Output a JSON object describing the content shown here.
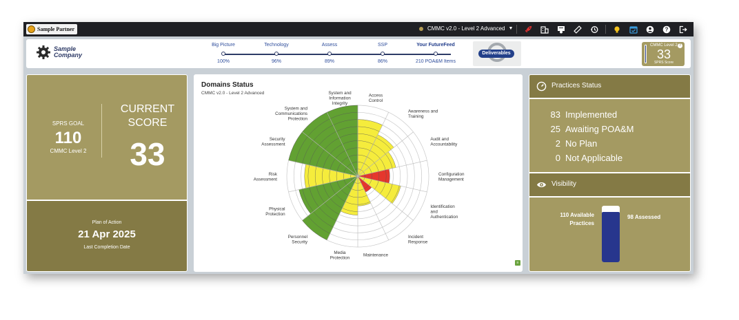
{
  "topbar": {
    "partner_logo_text": "Sample Partner",
    "version_select": "CMMC v2.0 - Level 2 Advanced",
    "icons": [
      "rocket-icon",
      "building-icon",
      "certificate-icon",
      "ruler-icon",
      "history-icon",
      "lightbulb-icon",
      "calendar-check-icon",
      "account-icon",
      "help-icon",
      "logout-icon"
    ],
    "accent_color": "#e03030"
  },
  "header": {
    "company_name_line1": "Sample",
    "company_name_line2": "Company",
    "steps": [
      {
        "label": "Big Picture",
        "value": "100%"
      },
      {
        "label": "Technology",
        "value": "96%"
      },
      {
        "label": "Assess",
        "value": "89%"
      },
      {
        "label": "SSP",
        "value": "86%"
      },
      {
        "label": "Your FutureFeed",
        "value": "210 POA&M Items"
      }
    ],
    "deliverables_label": "Deliverables",
    "score_mini": {
      "label": "CMMC Level 2",
      "value": "33",
      "sub": "SPRS Score",
      "help": "?"
    }
  },
  "goal_card": {
    "goal_label": "SPRS GOAL",
    "goal_value": "110",
    "goal_sub": "CMMC Level 2",
    "current_label": "CURRENT SCORE",
    "current_value": "33"
  },
  "plan_card": {
    "label": "Plan of Action",
    "date": "21 Apr 2025",
    "sub": "Last Completion Date"
  },
  "domains": {
    "title": "Domains Status",
    "subtitle": "CMMC v2.0 - Level 2 Advanced",
    "colors": {
      "green": "#62a132",
      "yellow": "#f5ec3c",
      "red": "#e5372d"
    },
    "items": [
      {
        "label": "Access Control",
        "level": 0.8,
        "color": "yellow"
      },
      {
        "label": "Awareness and Training",
        "level": 0.65,
        "color": "yellow"
      },
      {
        "label": "Audit and Accountability",
        "level": 0.55,
        "color": "yellow"
      },
      {
        "label": "Configuration Management",
        "level": 0.45,
        "color": "red"
      },
      {
        "label": "Identification and Authentication",
        "level": 0.62,
        "color": "yellow"
      },
      {
        "label": "Incident Response",
        "level": 0.25,
        "color": "red"
      },
      {
        "label": "Maintenance",
        "level": 0.42,
        "color": "yellow"
      },
      {
        "label": "Media Protection",
        "level": 0.55,
        "color": "yellow"
      },
      {
        "label": "Personnel Security",
        "level": 1.0,
        "color": "green"
      },
      {
        "label": "Physical Protection",
        "level": 0.85,
        "color": "green"
      },
      {
        "label": "Risk Assessment",
        "level": 0.75,
        "color": "yellow"
      },
      {
        "label": "Security Assessment",
        "level": 1.0,
        "color": "green"
      },
      {
        "label": "System and Communications Protection",
        "level": 1.0,
        "color": "green"
      },
      {
        "label": "System and Information Integrity",
        "level": 1.0,
        "color": "green"
      }
    ]
  },
  "practices": {
    "title": "Practices Status",
    "rows": [
      {
        "count": "83",
        "label": "Implemented"
      },
      {
        "count": "25",
        "label": "Awaiting POA&M"
      },
      {
        "count": "2",
        "label": "No Plan"
      },
      {
        "count": "0",
        "label": "Not Applicable"
      }
    ]
  },
  "visibility": {
    "title": "Visibility",
    "available_label": "110 Available Practices",
    "assessed_label": "98 Assessed",
    "assessed_fraction": 0.89
  }
}
